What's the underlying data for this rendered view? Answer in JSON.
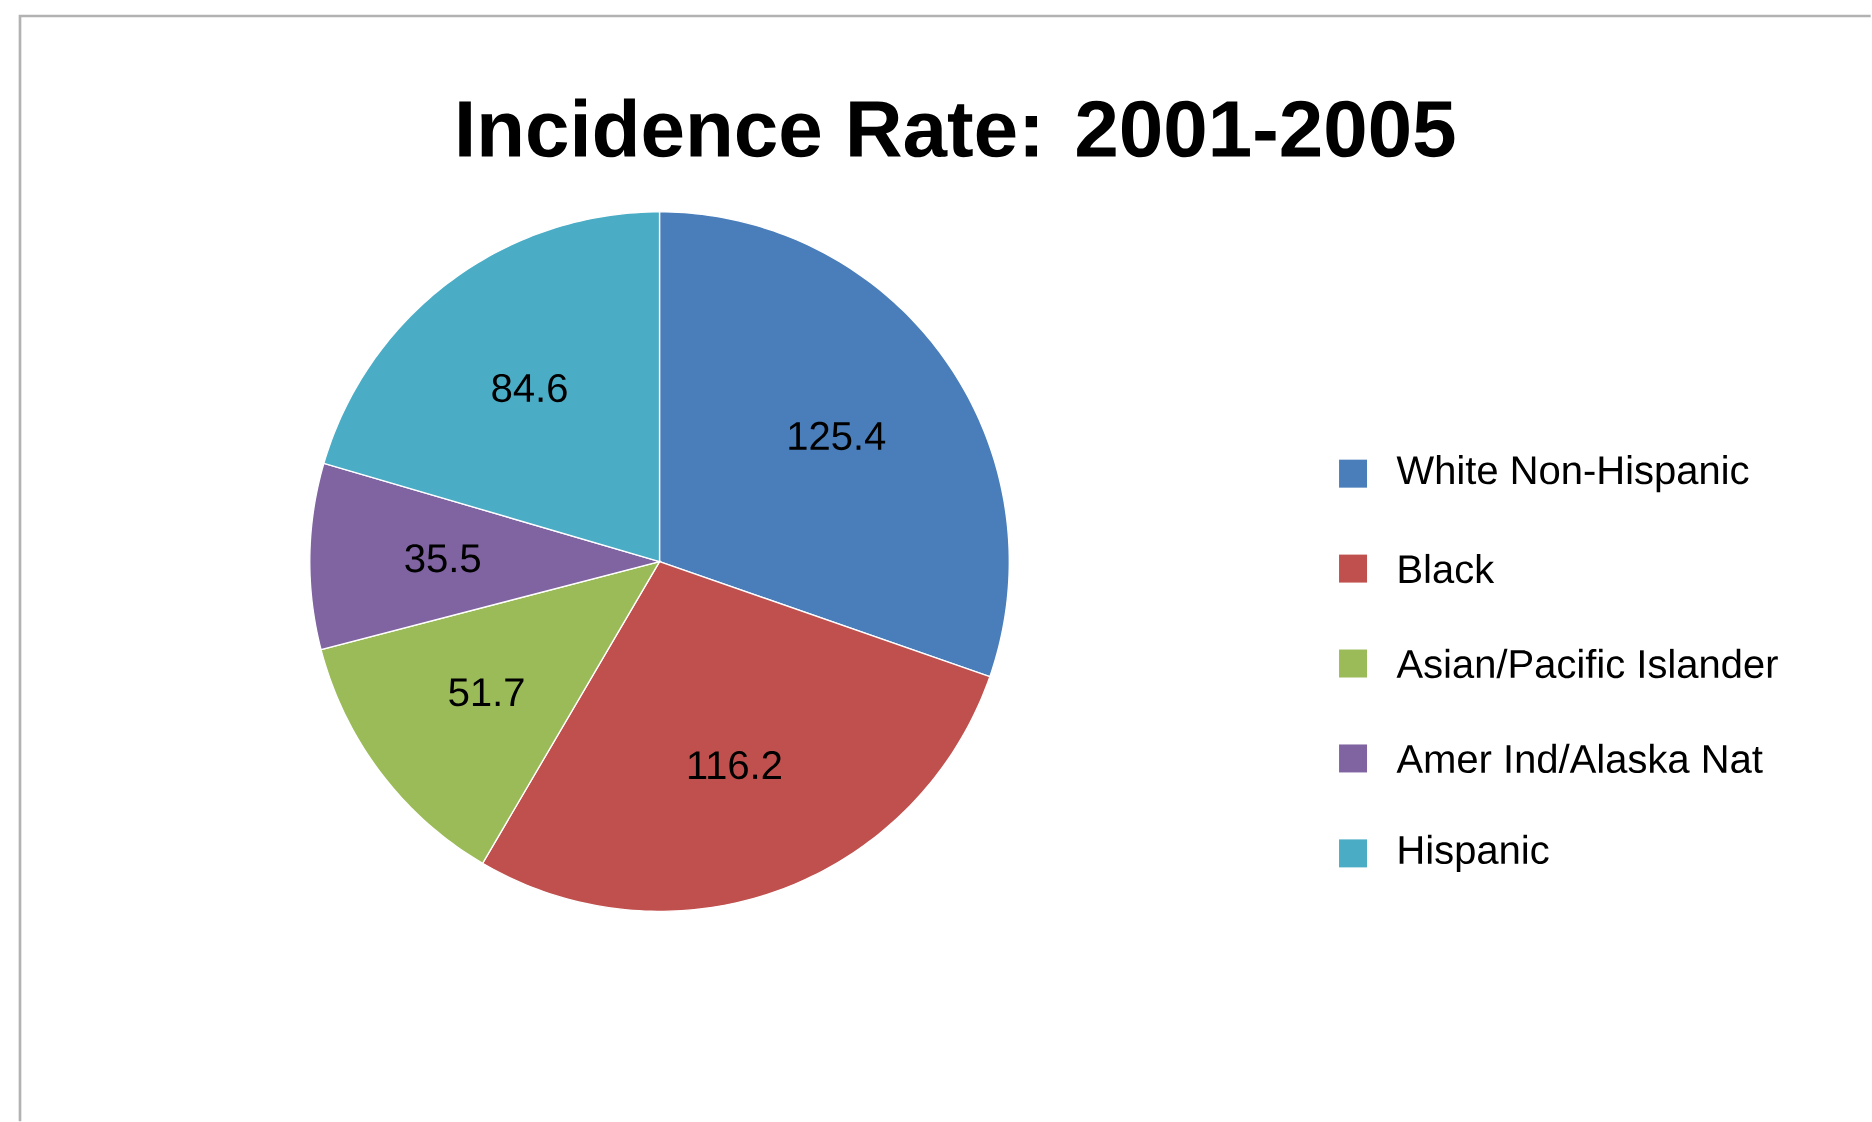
{
  "chart_data": {
    "type": "pie",
    "title": "Incidence Rate: 2001-2005",
    "categories": [
      "White Non-Hispanic",
      "Black",
      "Asian/Pacific Islander",
      "Amer Ind/Alaska Nat",
      "Hispanic"
    ],
    "values": [
      125.4,
      116.2,
      51.7,
      35.5,
      84.6
    ],
    "colors": [
      "#4a7ebb",
      "#c0504d",
      "#9bbb59",
      "#8064a2",
      "#4bacc6"
    ],
    "data_labels": true,
    "legend": "right"
  }
}
